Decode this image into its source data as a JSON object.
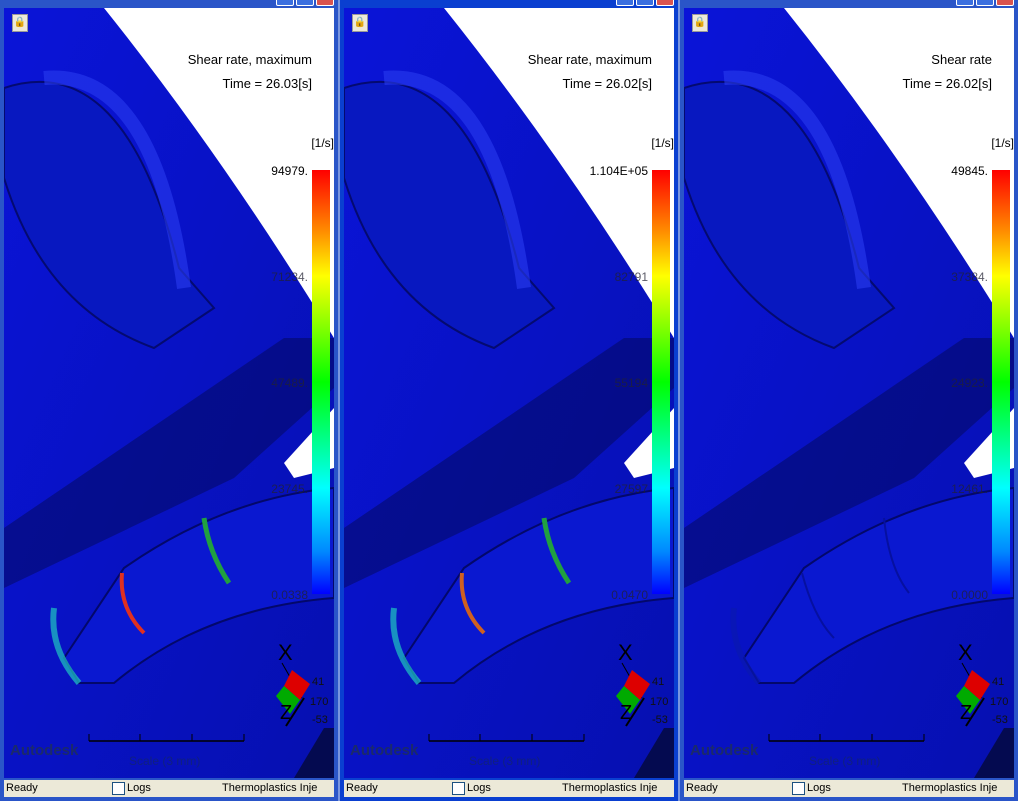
{
  "panels": [
    {
      "title": "Shear rate, maximum",
      "time": "Time = 26.03[s]",
      "unit": "[1/s]",
      "legend": [
        "94979.",
        "71234.",
        "47489.",
        "23745.",
        "0.0338"
      ],
      "active": false,
      "axes": {
        "x": "X",
        "z": "Z",
        "v1": "41",
        "v2": "170",
        "v3": "-53"
      }
    },
    {
      "title": "Shear rate, maximum",
      "time": "Time = 26.02[s]",
      "unit": "[1/s]",
      "legend": [
        "1.104E+05",
        "82791",
        "55194",
        "27597",
        "0.0470"
      ],
      "active": true,
      "axes": {
        "x": "X",
        "z": "Z",
        "v1": "41",
        "v2": "170",
        "v3": "-53"
      }
    },
    {
      "title": "Shear rate",
      "time": "Time = 26.02[s]",
      "unit": "[1/s]",
      "legend": [
        "49845.",
        "37384.",
        "24923.",
        "12461.",
        "0.0000"
      ],
      "active": false,
      "axes": {
        "x": "X",
        "z": "Z",
        "v1": "41",
        "v2": "170",
        "v3": "-53"
      }
    }
  ],
  "common": {
    "scale": "Scale (3 mm)",
    "brand": "Autodesk",
    "status_ready": "Ready",
    "logs": "Logs",
    "module": "Thermoplastics Inje"
  },
  "colors": {
    "model": "#0a12c8",
    "background": "#ffffff"
  }
}
